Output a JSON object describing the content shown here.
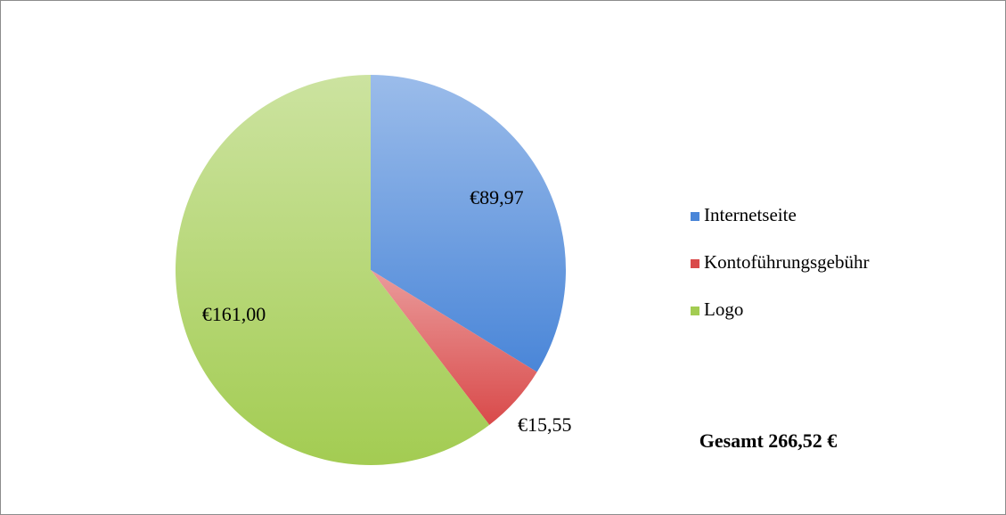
{
  "chart_data": {
    "type": "pie",
    "categories": [
      "Internetseite",
      "Kontoführungsgebühr",
      "Logo"
    ],
    "values": [
      89.97,
      15.55,
      161.0
    ],
    "value_labels": [
      "€89,97",
      "€15,55",
      "€161,00"
    ],
    "colors": [
      "#4a86d8",
      "#d94a4a",
      "#a3cc52"
    ],
    "legend": "right",
    "annotation": "Gesamt 266,52 €"
  }
}
